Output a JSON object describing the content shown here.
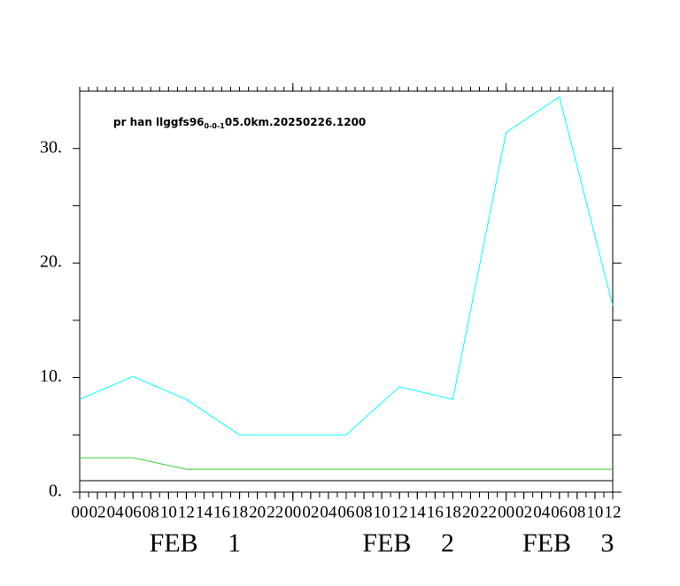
{
  "chart_data": {
    "type": "line",
    "title": "pr han llggfs96",
    "title_sub": "0-0-1",
    "title_rest": "05.0km.20250226.1200",
    "x": [
      0,
      6,
      12,
      18,
      24,
      30,
      36,
      42,
      48,
      54,
      60
    ],
    "xlim": [
      0,
      60
    ],
    "xticks": [
      {
        "value": 0,
        "label": "00"
      },
      {
        "value": 2,
        "label": "02"
      },
      {
        "value": 4,
        "label": "04"
      },
      {
        "value": 6,
        "label": "06"
      },
      {
        "value": 8,
        "label": "08"
      },
      {
        "value": 10,
        "label": "10"
      },
      {
        "value": 12,
        "label": "12"
      },
      {
        "value": 14,
        "label": "14"
      },
      {
        "value": 16,
        "label": "16"
      },
      {
        "value": 18,
        "label": "18"
      },
      {
        "value": 20,
        "label": "20"
      },
      {
        "value": 22,
        "label": "22"
      },
      {
        "value": 24,
        "label": "00"
      },
      {
        "value": 26,
        "label": "02"
      },
      {
        "value": 28,
        "label": "04"
      },
      {
        "value": 30,
        "label": "06"
      },
      {
        "value": 32,
        "label": "08"
      },
      {
        "value": 34,
        "label": "10"
      },
      {
        "value": 36,
        "label": "12"
      },
      {
        "value": 38,
        "label": "14"
      },
      {
        "value": 40,
        "label": "16"
      },
      {
        "value": 42,
        "label": "18"
      },
      {
        "value": 44,
        "label": "20"
      },
      {
        "value": 46,
        "label": "22"
      },
      {
        "value": 48,
        "label": "00"
      },
      {
        "value": 50,
        "label": "02"
      },
      {
        "value": 52,
        "label": "04"
      },
      {
        "value": 54,
        "label": "06"
      },
      {
        "value": 56,
        "label": "08"
      },
      {
        "value": 58,
        "label": "10"
      },
      {
        "value": 60,
        "label": "12"
      }
    ],
    "xmajorticks": [
      24,
      48
    ],
    "xminorticks_every": 1,
    "date_labels": [
      {
        "value": 12,
        "label": "FEB 1"
      },
      {
        "value": 36,
        "label": "FEB 2"
      },
      {
        "value": 54,
        "label": "FEB 3"
      }
    ],
    "ylim": [
      0,
      35
    ],
    "yticks": [
      {
        "value": 0,
        "label": "0."
      },
      {
        "value": 10,
        "label": "10."
      },
      {
        "value": 20,
        "label": "20."
      },
      {
        "value": 30,
        "label": "30."
      }
    ],
    "yminorticks": [
      5,
      15,
      25
    ],
    "series": [
      {
        "color": "#00ffff",
        "values": [
          8.1,
          10.1,
          8.1,
          5.0,
          5.0,
          5.0,
          9.2,
          8.1,
          31.4,
          34.5,
          16.3
        ]
      },
      {
        "color": "#33cc33",
        "values": [
          3.0,
          3.0,
          2.0,
          2.0,
          2.0,
          2.0,
          2.0,
          2.0,
          2.0,
          2.0,
          2.0
        ]
      },
      {
        "color": "#000000",
        "values": [
          1.0,
          1.0,
          1.0,
          1.0,
          1.0,
          1.0,
          1.0,
          1.0,
          1.0,
          1.0,
          1.0
        ]
      }
    ]
  }
}
